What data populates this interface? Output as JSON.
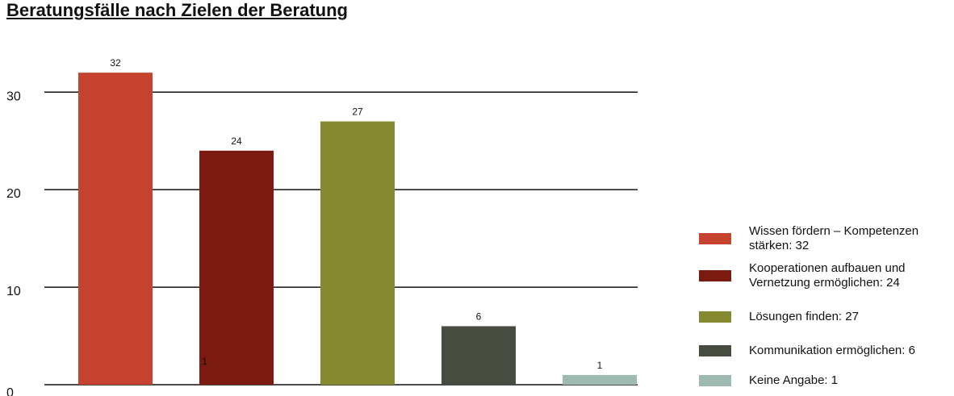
{
  "chart_data": {
    "type": "bar",
    "title": "Beratungsfälle nach Zielen der Beratung",
    "categories": [
      "Wissen fördern – Kompetenzen stärken: 32",
      "Kooperationen aufbauen und Vernetzung ermöglichen: 24",
      "Lösungen finden: 27",
      "Kommunikation ermöglichen: 6",
      "Keine Angabe: 1"
    ],
    "values": [
      32,
      24,
      27,
      6,
      1
    ],
    "colors": [
      "#c5432f",
      "#7a1a10",
      "#858a30",
      "#474c40",
      "#9fbaae"
    ],
    "annotation": "1",
    "ylim": [
      0,
      33
    ],
    "yticks": [
      0,
      10,
      20,
      30
    ],
    "grid": true,
    "legend": "right"
  }
}
